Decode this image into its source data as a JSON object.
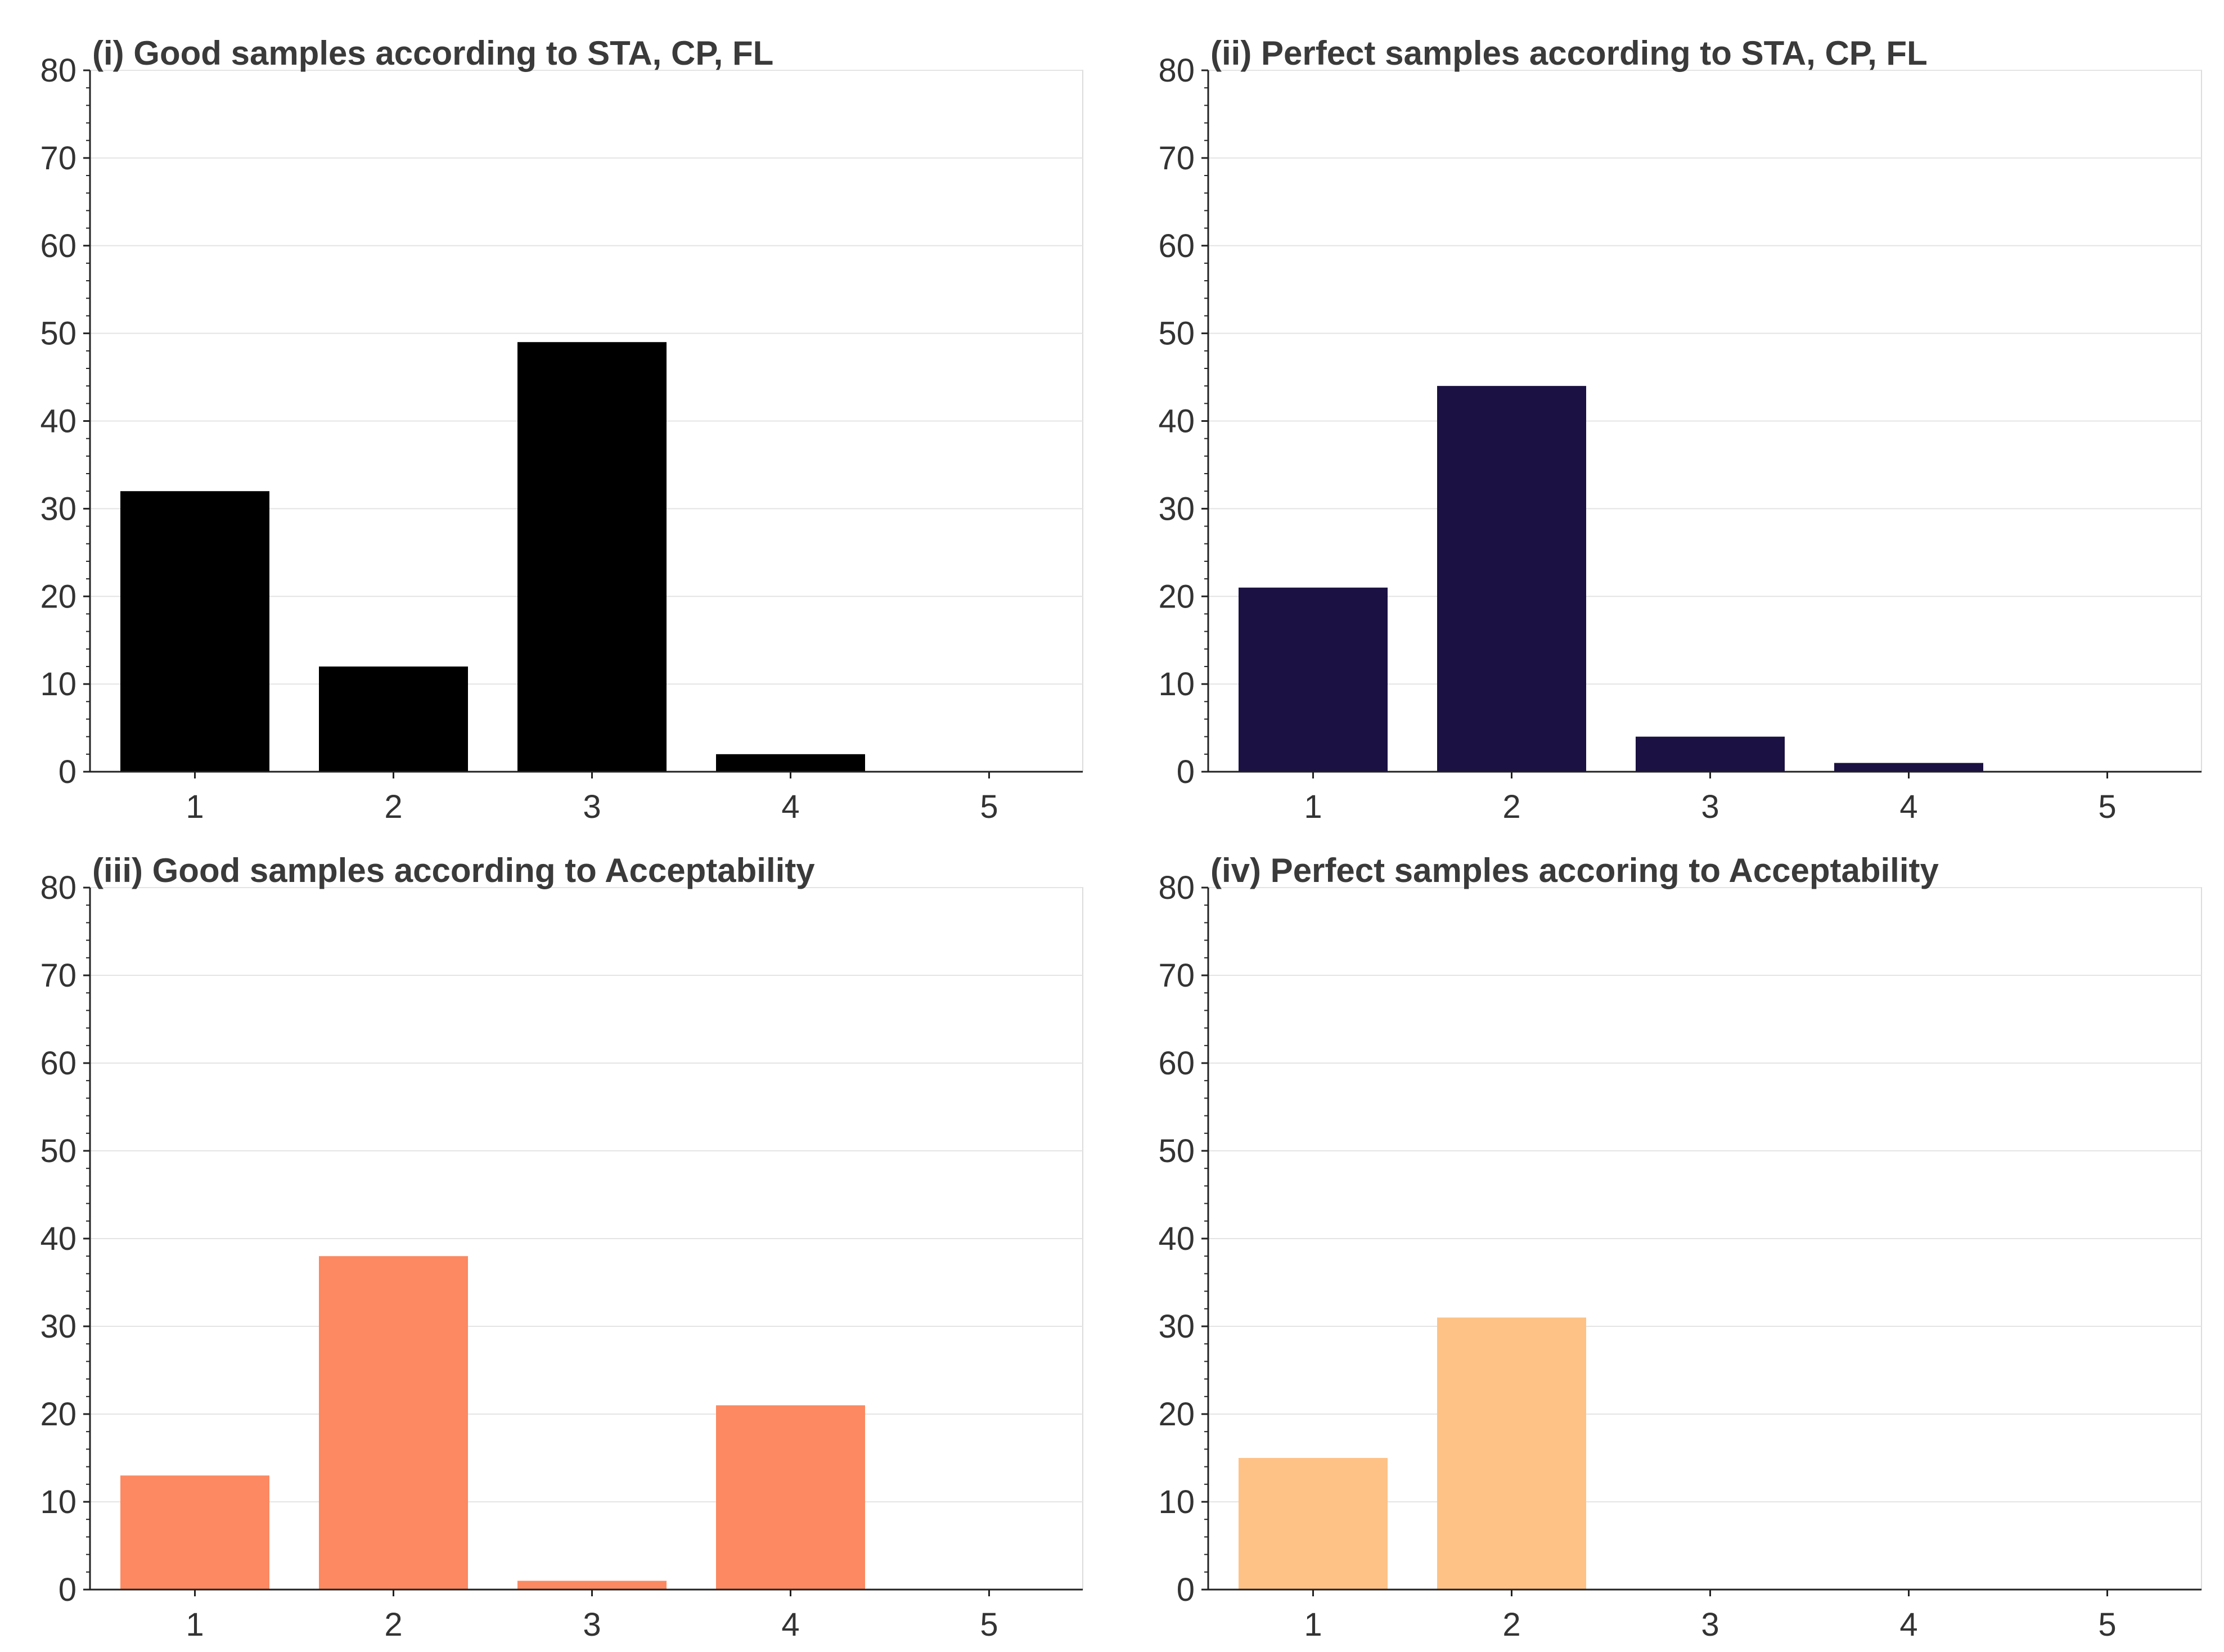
{
  "chart_data": [
    {
      "type": "bar",
      "title": "(i) Good samples according to STA, CP, FL",
      "categories": [
        "1",
        "2",
        "3",
        "4",
        "5"
      ],
      "values": [
        32,
        12,
        49,
        2,
        0
      ],
      "ylim": [
        0,
        80
      ],
      "yticks": [
        "0",
        "10",
        "20",
        "30",
        "40",
        "50",
        "60",
        "70",
        "80"
      ],
      "xlabel": "",
      "ylabel": "",
      "grid": true,
      "color": "#000000"
    },
    {
      "type": "bar",
      "title": "(ii) Perfect samples according to STA, CP, FL",
      "categories": [
        "1",
        "2",
        "3",
        "4",
        "5"
      ],
      "values": [
        21,
        44,
        4,
        1,
        0
      ],
      "ylim": [
        0,
        80
      ],
      "yticks": [
        "0",
        "10",
        "20",
        "30",
        "40",
        "50",
        "60",
        "70",
        "80"
      ],
      "xlabel": "",
      "ylabel": "",
      "grid": true,
      "color": "#1b1142"
    },
    {
      "type": "bar",
      "title": "(iii) Good samples according to Acceptability",
      "categories": [
        "1",
        "2",
        "3",
        "4",
        "5"
      ],
      "values": [
        13,
        38,
        1,
        21,
        0
      ],
      "ylim": [
        0,
        80
      ],
      "yticks": [
        "0",
        "10",
        "20",
        "30",
        "40",
        "50",
        "60",
        "70",
        "80"
      ],
      "xlabel": "",
      "ylabel": "",
      "grid": true,
      "color": "#fc8961"
    },
    {
      "type": "bar",
      "title": "(iv) Perfect samples accoring to Acceptability",
      "categories": [
        "1",
        "2",
        "3",
        "4",
        "5"
      ],
      "values": [
        15,
        31,
        0,
        0,
        0
      ],
      "ylim": [
        0,
        80
      ],
      "yticks": [
        "0",
        "10",
        "20",
        "30",
        "40",
        "50",
        "60",
        "70",
        "80"
      ],
      "xlabel": "",
      "ylabel": "",
      "grid": true,
      "color": "#fec287"
    }
  ]
}
